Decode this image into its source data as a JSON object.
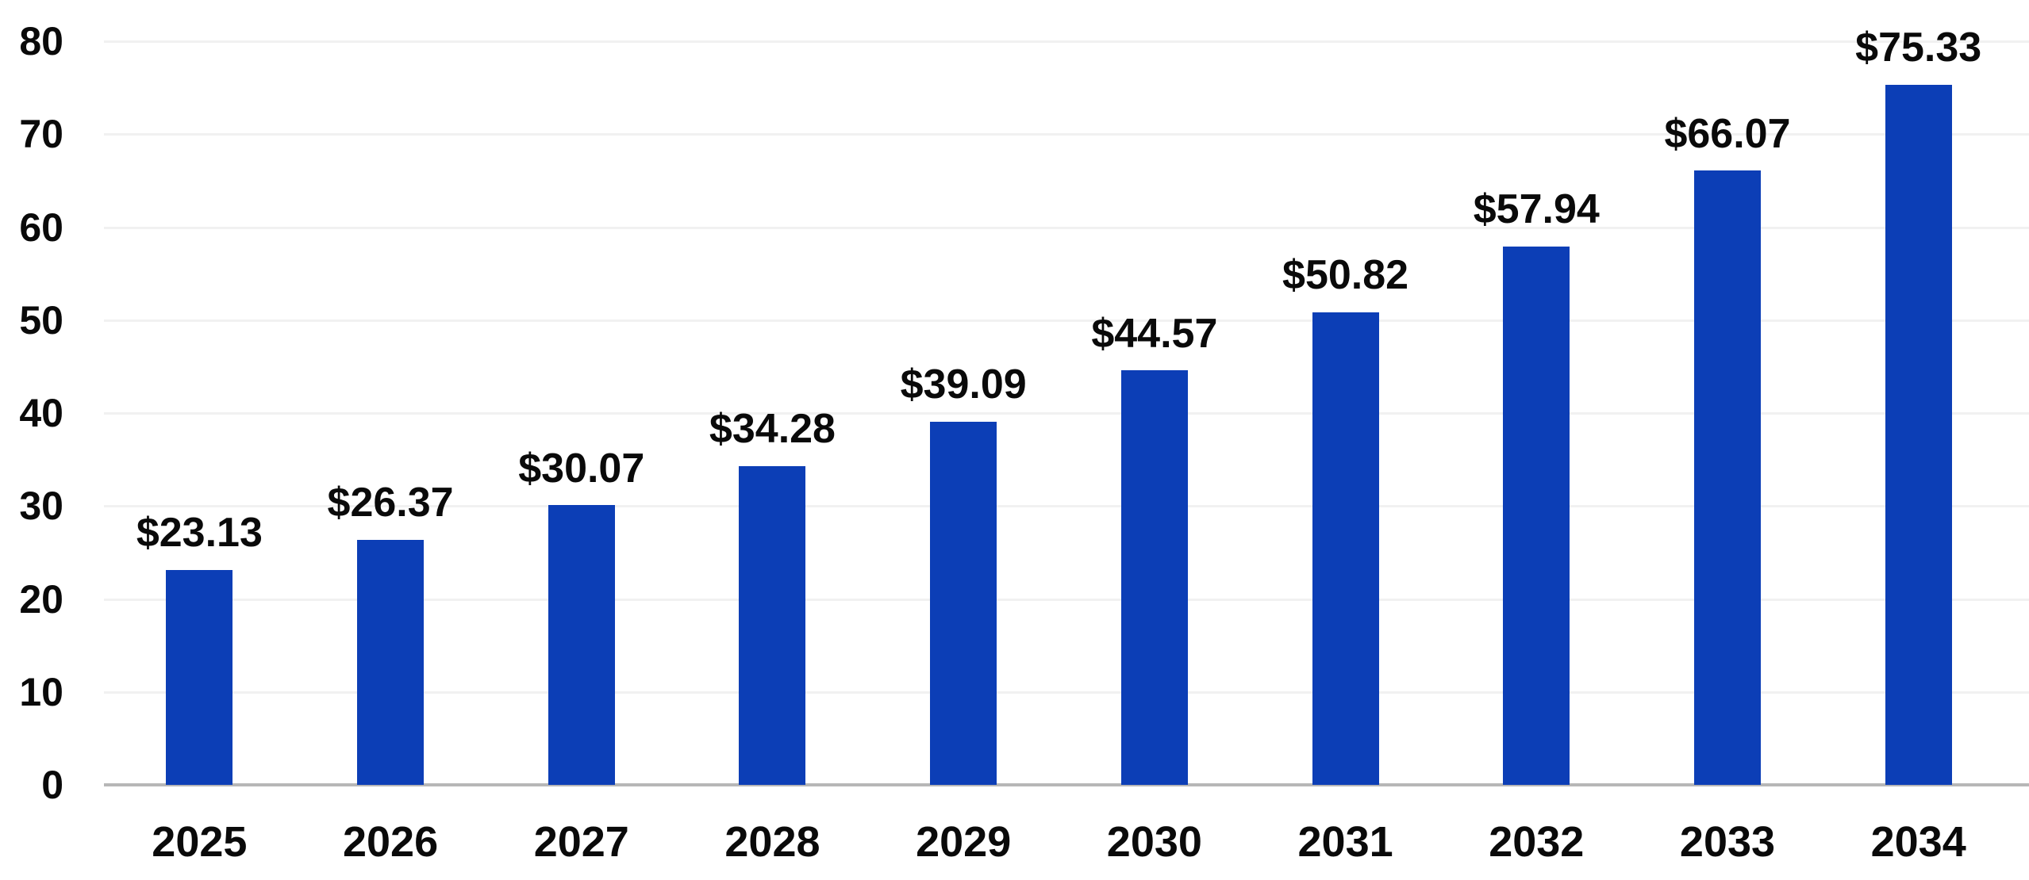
{
  "chart_data": {
    "type": "bar",
    "title": "",
    "xlabel": "",
    "ylabel": "",
    "categories": [
      "2025",
      "2026",
      "2027",
      "2028",
      "2029",
      "2030",
      "2031",
      "2032",
      "2033",
      "2034"
    ],
    "values": [
      23.13,
      26.37,
      30.07,
      34.28,
      39.09,
      44.57,
      50.82,
      57.94,
      66.07,
      75.33
    ],
    "bar_labels": [
      "$23.13",
      "$26.37",
      "$30.07",
      "$34.28",
      "$39.09",
      "$44.57",
      "$50.82",
      "$57.94",
      "$66.07",
      "$75.33"
    ],
    "ylim": [
      0,
      80
    ],
    "yticks": [
      0,
      10,
      20,
      30,
      40,
      50,
      60,
      70,
      80
    ],
    "grid": true,
    "legend": false,
    "colors": {
      "bar": "#0c3eb6",
      "text": "#0a0a0a",
      "gridline": "#f1f1f1",
      "axis_line": "#b7b7b7",
      "background": "#ffffff"
    }
  }
}
